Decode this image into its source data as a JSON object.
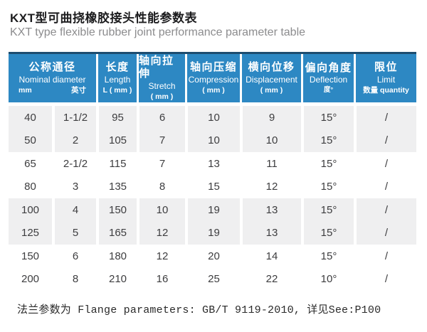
{
  "title": {
    "zh": "KXT型可曲挠橡胶接头性能参数表",
    "en": "KXT type flexible rubber joint performance parameter table"
  },
  "table": {
    "columns": [
      {
        "zh": "公称通径",
        "en": "Nominal diameter",
        "sub_left": "mm",
        "sub_right": "英寸"
      },
      {
        "zh": "长度",
        "en": "Length",
        "sub": "L ( mm )"
      },
      {
        "zh": "轴向拉伸",
        "en": "Stretch",
        "sub": "( mm )"
      },
      {
        "zh": "轴向压缩",
        "en": "Compression",
        "sub": "( mm )"
      },
      {
        "zh": "横向位移",
        "en": "Displacement",
        "sub": "( mm )"
      },
      {
        "zh": "偏向角度",
        "en": "Deflection",
        "sub": "度°"
      },
      {
        "zh": "限位",
        "en": "Limit",
        "sub": "数量 quantity"
      }
    ],
    "rows": [
      [
        "40",
        "1-1/2",
        "95",
        "6",
        "10",
        "9",
        "15°",
        "/"
      ],
      [
        "50",
        "2",
        "105",
        "7",
        "10",
        "10",
        "15°",
        "/"
      ],
      [
        "65",
        "2-1/2",
        "115",
        "7",
        "13",
        "11",
        "15°",
        "/"
      ],
      [
        "80",
        "3",
        "135",
        "8",
        "15",
        "12",
        "15°",
        "/"
      ],
      [
        "100",
        "4",
        "150",
        "10",
        "19",
        "13",
        "15°",
        "/"
      ],
      [
        "125",
        "5",
        "165",
        "12",
        "19",
        "13",
        "15°",
        "/"
      ],
      [
        "150",
        "6",
        "180",
        "12",
        "20",
        "14",
        "15°",
        "/"
      ],
      [
        "200",
        "8",
        "210",
        "16",
        "25",
        "22",
        "10°",
        "/"
      ]
    ]
  },
  "footer": {
    "text": "法兰参数为 Flange parameters: GB/T 9119-2010, 详见See:P100"
  },
  "colors": {
    "header_bg": "#2d88c3",
    "header_top_border": "#1d4d70",
    "stripe_bg": "#efeff0",
    "body_text": "#3d3d3f"
  }
}
